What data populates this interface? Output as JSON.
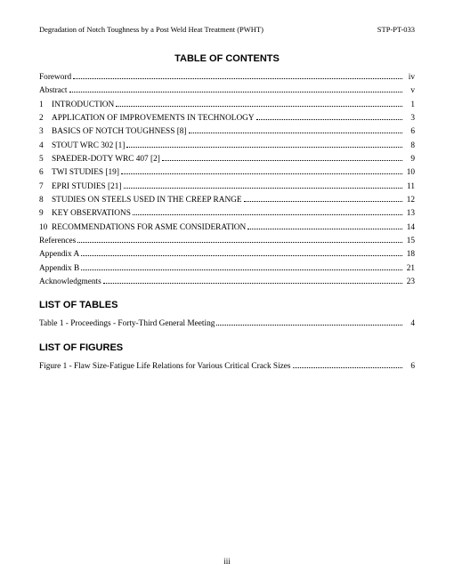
{
  "header": {
    "left": "Degradation of Notch Toughness by a Post Weld Heat Treatment (PWHT)",
    "right": "STP-PT-033"
  },
  "toc": {
    "title": "TABLE OF CONTENTS",
    "entries": [
      {
        "num": "",
        "label": "Foreword",
        "page": "iv"
      },
      {
        "num": "",
        "label": "Abstract",
        "page": "v"
      },
      {
        "num": "1",
        "label": "INTRODUCTION",
        "page": "1"
      },
      {
        "num": "2",
        "label": "APPLICATION OF IMPROVEMENTS IN TECHNOLOGY",
        "page": "3"
      },
      {
        "num": "3",
        "label": "BASICS OF NOTCH TOUGHNESS [8]",
        "page": "6"
      },
      {
        "num": "4",
        "label": "STOUT WRC 302 [1]",
        "page": "8"
      },
      {
        "num": "5",
        "label": "SPAEDER-DOTY WRC 407 [2]",
        "page": "9"
      },
      {
        "num": "6",
        "label": "TWI STUDIES [19]",
        "page": "10"
      },
      {
        "num": "7",
        "label": "EPRI STUDIES [21]",
        "page": "11"
      },
      {
        "num": "8",
        "label": "STUDIES ON STEELS USED IN THE CREEP RANGE",
        "page": "12"
      },
      {
        "num": "9",
        "label": "KEY OBSERVATIONS",
        "page": "13"
      },
      {
        "num": "10",
        "label": "RECOMMENDATIONS FOR ASME CONSIDERATION",
        "page": "14"
      },
      {
        "num": "",
        "label": "References",
        "page": "15"
      },
      {
        "num": "",
        "label": "Appendix A",
        "page": "18"
      },
      {
        "num": "",
        "label": "Appendix B",
        "page": "21"
      },
      {
        "num": "",
        "label": "Acknowledgments",
        "page": "23"
      }
    ]
  },
  "lot": {
    "title": "LIST OF TABLES",
    "entries": [
      {
        "num": "",
        "label": "Table 1 - Proceedings - Forty-Third General Meeting",
        "page": "4"
      }
    ]
  },
  "lof": {
    "title": "LIST OF FIGURES",
    "entries": [
      {
        "num": "",
        "label": "Figure 1 - Flaw Size-Fatigue Life Relations for Various Critical Crack Sizes",
        "page": "6"
      }
    ]
  },
  "pageNumber": "iii"
}
